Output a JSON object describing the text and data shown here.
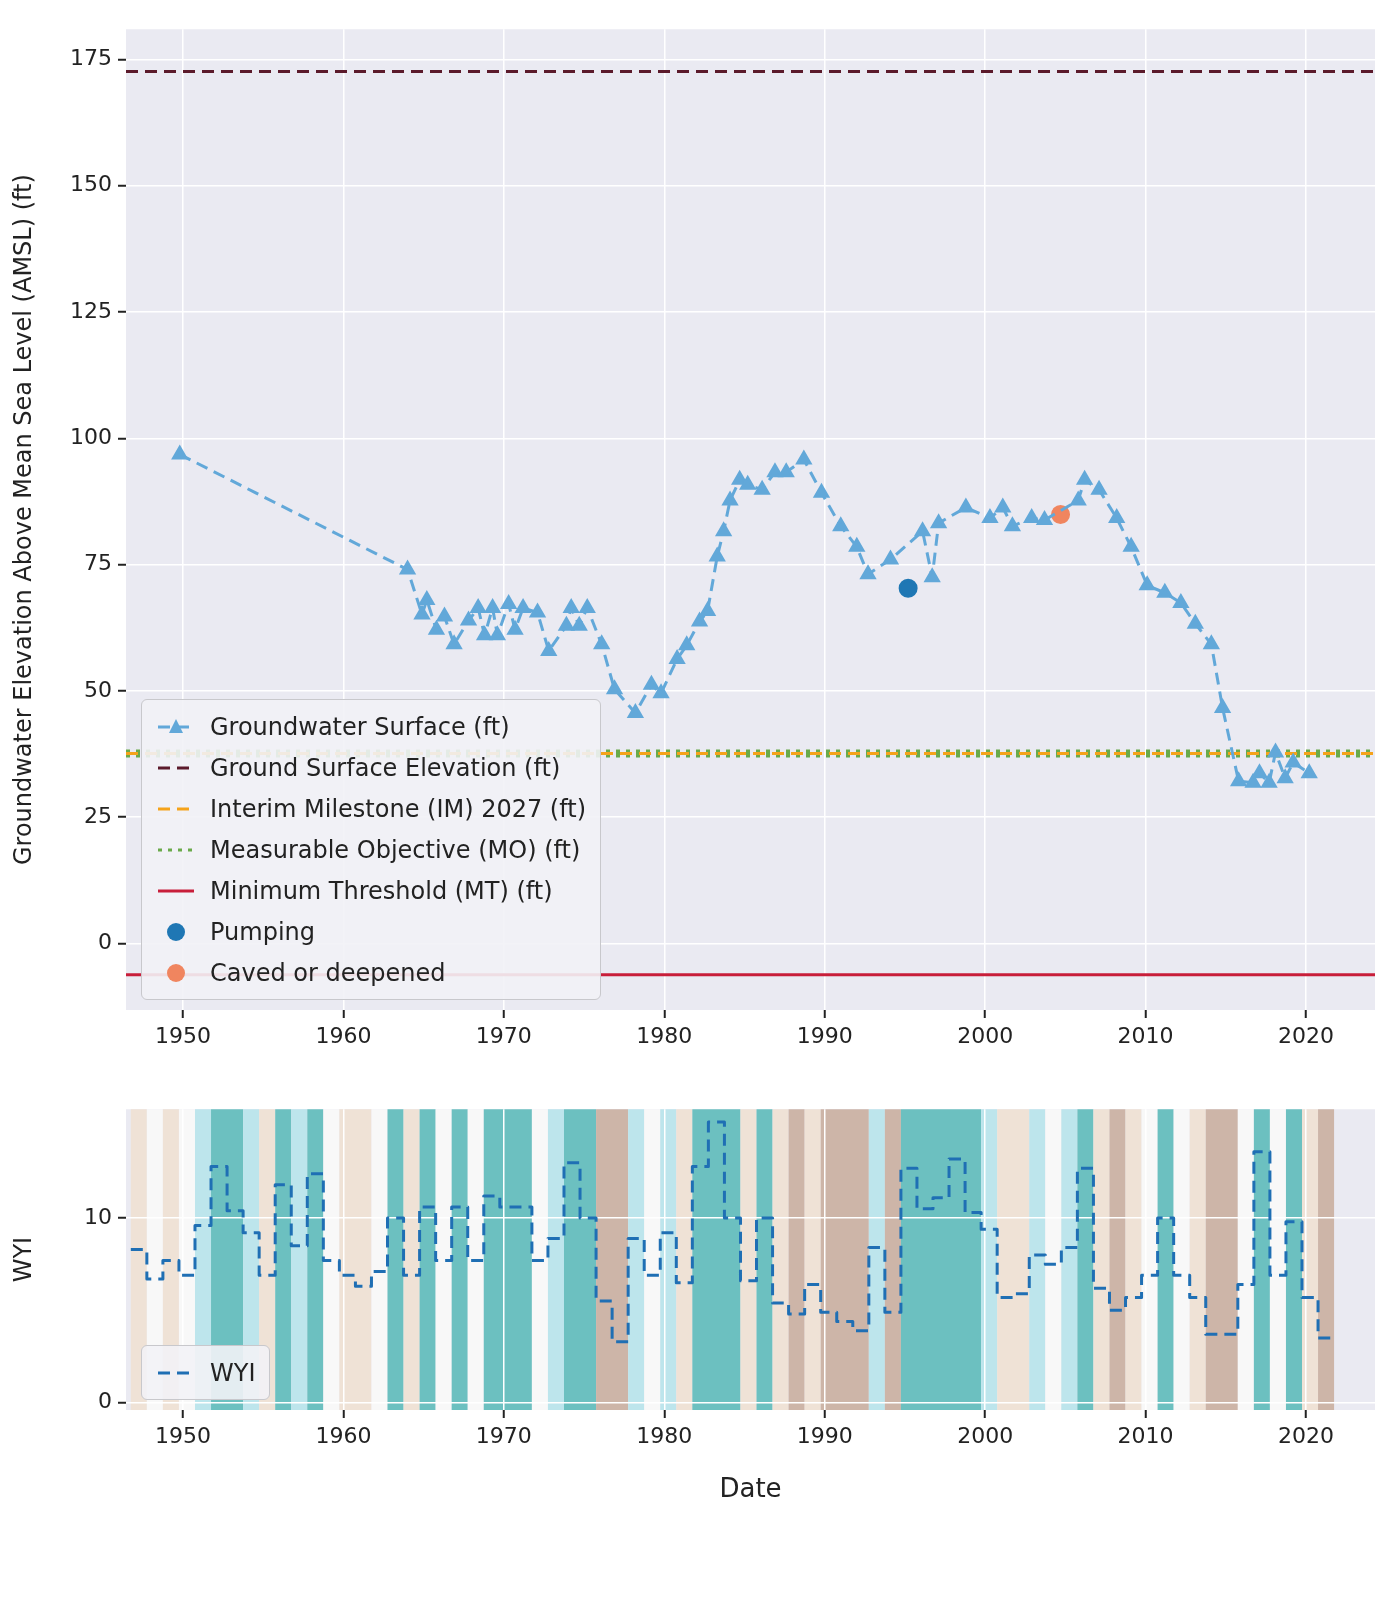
{
  "chart_data": [
    {
      "type": "line",
      "ylabel": "Groundwater Elevation Above Mean Sea Level (AMSL) (ft)",
      "xlim": [
        1946.45,
        2024.3
      ],
      "ylim": [
        -13.2,
        181
      ],
      "xticks": [
        1950,
        1960,
        1970,
        1980,
        1990,
        2000,
        2010,
        2020
      ],
      "yticks": [
        0,
        25,
        50,
        75,
        100,
        125,
        150,
        175
      ],
      "grid": true,
      "legend": "bottom left",
      "series": [
        {
          "name": "Groundwater Surface (ft)",
          "type": "line",
          "color": "#62a8d9",
          "marker": "triangle",
          "line_style": "dashed",
          "x": [
            1949.8,
            1964.0,
            1964.9,
            1965.2,
            1965.8,
            1966.3,
            1966.9,
            1967.8,
            1968.4,
            1968.8,
            1969.3,
            1969.6,
            1970.3,
            1970.7,
            1971.2,
            1972.1,
            1972.8,
            1973.9,
            1974.2,
            1974.7,
            1975.2,
            1976.1,
            1976.9,
            1978.2,
            1979.2,
            1979.8,
            1980.8,
            1981.4,
            1982.2,
            1982.7,
            1983.3,
            1983.7,
            1984.1,
            1984.7,
            1985.2,
            1986.1,
            1986.9,
            1987.6,
            1988.7,
            1989.8,
            1991.0,
            1992.0,
            1992.7,
            1994.1,
            1996.1,
            1996.7,
            1997.1,
            1998.8,
            2000.3,
            2001.1,
            2001.7,
            2002.9,
            2003.7,
            2005.8,
            2006.2,
            2007.1,
            2008.2,
            2009.1,
            2010.1,
            2011.2,
            2012.2,
            2013.1,
            2014.1,
            2014.8,
            2015.8,
            2016.7,
            2017.1,
            2017.7,
            2018.1,
            2018.7,
            2019.2,
            2020.2
          ],
          "values": [
            96.8,
            74.0,
            65.1,
            68.0,
            62.1,
            64.7,
            59.2,
            63.9,
            66.4,
            61.0,
            66.4,
            61.0,
            67.2,
            62.1,
            66.4,
            65.5,
            57.9,
            62.9,
            66.4,
            62.9,
            66.4,
            59.2,
            50.3,
            45.6,
            51.2,
            49.5,
            56.3,
            59.0,
            63.7,
            65.8,
            76.6,
            81.6,
            87.7,
            91.8,
            90.8,
            89.8,
            93.3,
            93.3,
            95.8,
            89.2,
            82.6,
            78.5,
            73.1,
            76.0,
            81.6,
            72.5,
            83.2,
            86.3,
            84.2,
            86.3,
            82.6,
            84.2,
            83.8,
            87.7,
            91.8,
            89.8,
            84.2,
            78.5,
            70.9,
            69.4,
            67.4,
            63.3,
            59.2,
            46.6,
            32.1,
            31.8,
            33.7,
            31.8,
            37.8,
            32.7,
            35.8,
            33.7
          ]
        },
        {
          "name": "Ground Surface Elevation (ft)",
          "type": "line",
          "color": "#5b1a2b",
          "line_style": "dashed",
          "x": [
            1946.45,
            2024.3
          ],
          "values": [
            172.6,
            172.6
          ]
        },
        {
          "name": "Interim Milestone (IM) 2027 (ft)",
          "type": "line",
          "color": "#f5a31a",
          "line_style": "dashed",
          "x": [
            1946.45,
            2024.3
          ],
          "values": [
            37.6,
            37.6
          ]
        },
        {
          "name": "Measurable Objective (MO) (ft)",
          "type": "line",
          "color": "#6aaa4a",
          "line_style": "dotted",
          "x": [
            1946.45,
            2024.3
          ],
          "values": [
            37.6,
            37.6
          ]
        },
        {
          "name": "Minimum Threshold (MT) (ft)",
          "type": "line",
          "color": "#c81e3a",
          "line_style": "solid",
          "x": [
            1946.45,
            2024.3
          ],
          "values": [
            -6.2,
            -6.2
          ]
        },
        {
          "name": "Pumping",
          "type": "scatter",
          "color": "#1f77b4",
          "marker": "circle",
          "x": [
            1995.2
          ],
          "values": [
            70.3
          ]
        },
        {
          "name": "Caved or deepened",
          "type": "scatter",
          "color": "#f0855f",
          "marker": "circle",
          "x": [
            2004.7
          ],
          "values": [
            84.9
          ]
        }
      ]
    },
    {
      "type": "step",
      "xlabel": "Date",
      "ylabel": "WYI",
      "xlim": [
        1946.45,
        2024.3
      ],
      "ylim": [
        -0.4,
        15.9
      ],
      "xticks": [
        1950,
        1960,
        1970,
        1980,
        1990,
        2000,
        2010,
        2020
      ],
      "yticks": [
        0,
        10
      ],
      "grid": true,
      "legend": "bottom left",
      "series": [
        {
          "name": "WYI",
          "color": "#1f6fb4",
          "line_style": "dashed",
          "x": [
            1946.75,
            1947.75,
            1948.75,
            1949.75,
            1950.75,
            1951.75,
            1952.75,
            1953.75,
            1954.75,
            1955.75,
            1956.75,
            1957.75,
            1958.75,
            1959.75,
            1960.75,
            1961.75,
            1962.75,
            1963.75,
            1964.75,
            1965.75,
            1966.75,
            1967.75,
            1968.75,
            1969.75,
            1970.75,
            1971.75,
            1972.75,
            1973.75,
            1974.75,
            1975.75,
            1976.75,
            1977.75,
            1978.75,
            1979.75,
            1980.75,
            1981.75,
            1982.75,
            1983.75,
            1984.75,
            1985.75,
            1986.75,
            1987.75,
            1988.75,
            1989.75,
            1990.75,
            1991.75,
            1992.75,
            1993.75,
            1994.75,
            1995.75,
            1996.75,
            1997.75,
            1998.75,
            1999.75,
            2000.75,
            2001.75,
            2002.75,
            2003.75,
            2004.75,
            2005.75,
            2006.75,
            2007.75,
            2008.75,
            2009.75,
            2010.75,
            2011.75,
            2012.75,
            2013.75,
            2014.75,
            2015.75,
            2016.75,
            2017.75,
            2018.75,
            2019.75,
            2020.75,
            2021.75
          ],
          "values": [
            8.3,
            6.7,
            7.7,
            6.9,
            9.6,
            12.8,
            10.4,
            9.2,
            6.9,
            11.8,
            8.5,
            12.4,
            7.7,
            6.9,
            6.3,
            7.1,
            10.0,
            6.9,
            10.6,
            7.7,
            10.6,
            7.7,
            11.2,
            10.6,
            10.6,
            7.7,
            8.9,
            13.0,
            10.0,
            5.5,
            3.3,
            8.9,
            6.9,
            9.2,
            6.5,
            12.8,
            15.2,
            10.0,
            6.6,
            10.0,
            5.4,
            4.8,
            6.4,
            4.9,
            4.4,
            3.9,
            8.4,
            4.9,
            12.7,
            10.5,
            11.1,
            13.2,
            10.3,
            9.4,
            5.7,
            5.9,
            8.0,
            7.5,
            8.4,
            12.7,
            6.2,
            5.0,
            5.7,
            6.9,
            10.0,
            6.9,
            5.7,
            3.7,
            3.7,
            6.4,
            13.6,
            6.9,
            9.8,
            5.7,
            3.5,
            3.5
          ]
        }
      ],
      "bands": [
        {
          "axis": "x",
          "from": 1946.75,
          "to": 1947.75,
          "color": "#efe2d6"
        },
        {
          "axis": "x",
          "from": 1947.75,
          "to": 1948.75,
          "color": "#f8f8f8"
        },
        {
          "axis": "x",
          "from": 1948.75,
          "to": 1949.75,
          "color": "#efe2d6"
        },
        {
          "axis": "x",
          "from": 1949.75,
          "to": 1950.75,
          "color": "#f8f8f8"
        },
        {
          "axis": "x",
          "from": 1950.75,
          "to": 1951.75,
          "color": "#bde5ec"
        },
        {
          "axis": "x",
          "from": 1951.75,
          "to": 1953.75,
          "color": "#6cc0c0"
        },
        {
          "axis": "x",
          "from": 1953.75,
          "to": 1954.75,
          "color": "#bde5ec"
        },
        {
          "axis": "x",
          "from": 1954.75,
          "to": 1955.75,
          "color": "#efe2d6"
        },
        {
          "axis": "x",
          "from": 1955.75,
          "to": 1956.75,
          "color": "#6cc0c0"
        },
        {
          "axis": "x",
          "from": 1956.75,
          "to": 1957.75,
          "color": "#bde5ec"
        },
        {
          "axis": "x",
          "from": 1957.75,
          "to": 1958.75,
          "color": "#6cc0c0"
        },
        {
          "axis": "x",
          "from": 1958.75,
          "to": 1959.75,
          "color": "#f8f8f8"
        },
        {
          "axis": "x",
          "from": 1959.75,
          "to": 1961.75,
          "color": "#efe2d6"
        },
        {
          "axis": "x",
          "from": 1961.75,
          "to": 1962.75,
          "color": "#f8f8f8"
        },
        {
          "axis": "x",
          "from": 1962.75,
          "to": 1963.75,
          "color": "#6cc0c0"
        },
        {
          "axis": "x",
          "from": 1963.75,
          "to": 1964.75,
          "color": "#efe2d6"
        },
        {
          "axis": "x",
          "from": 1964.75,
          "to": 1965.75,
          "color": "#6cc0c0"
        },
        {
          "axis": "x",
          "from": 1965.75,
          "to": 1966.75,
          "color": "#f8f8f8"
        },
        {
          "axis": "x",
          "from": 1966.75,
          "to": 1967.75,
          "color": "#6cc0c0"
        },
        {
          "axis": "x",
          "from": 1967.75,
          "to": 1968.75,
          "color": "#f8f8f8"
        },
        {
          "axis": "x",
          "from": 1968.75,
          "to": 1971.75,
          "color": "#6cc0c0"
        },
        {
          "axis": "x",
          "from": 1971.75,
          "to": 1972.75,
          "color": "#f8f8f8"
        },
        {
          "axis": "x",
          "from": 1972.75,
          "to": 1973.75,
          "color": "#bde5ec"
        },
        {
          "axis": "x",
          "from": 1973.75,
          "to": 1975.75,
          "color": "#6cc0c0"
        },
        {
          "axis": "x",
          "from": 1975.75,
          "to": 1977.75,
          "color": "#cdb5a8"
        },
        {
          "axis": "x",
          "from": 1977.75,
          "to": 1978.75,
          "color": "#bde5ec"
        },
        {
          "axis": "x",
          "from": 1978.75,
          "to": 1979.75,
          "color": "#f8f8f8"
        },
        {
          "axis": "x",
          "from": 1979.75,
          "to": 1980.75,
          "color": "#bde5ec"
        },
        {
          "axis": "x",
          "from": 1980.75,
          "to": 1981.75,
          "color": "#efe2d6"
        },
        {
          "axis": "x",
          "from": 1981.75,
          "to": 1984.75,
          "color": "#6cc0c0"
        },
        {
          "axis": "x",
          "from": 1984.75,
          "to": 1985.75,
          "color": "#efe2d6"
        },
        {
          "axis": "x",
          "from": 1985.75,
          "to": 1986.75,
          "color": "#6cc0c0"
        },
        {
          "axis": "x",
          "from": 1986.75,
          "to": 1987.75,
          "color": "#efe2d6"
        },
        {
          "axis": "x",
          "from": 1987.75,
          "to": 1988.75,
          "color": "#cdb5a8"
        },
        {
          "axis": "x",
          "from": 1988.75,
          "to": 1989.75,
          "color": "#efe2d6"
        },
        {
          "axis": "x",
          "from": 1989.75,
          "to": 1992.75,
          "color": "#cdb5a8"
        },
        {
          "axis": "x",
          "from": 1992.75,
          "to": 1993.75,
          "color": "#bde5ec"
        },
        {
          "axis": "x",
          "from": 1993.75,
          "to": 1994.75,
          "color": "#cdb5a8"
        },
        {
          "axis": "x",
          "from": 1994.75,
          "to": 1999.75,
          "color": "#6cc0c0"
        },
        {
          "axis": "x",
          "from": 1999.75,
          "to": 2000.75,
          "color": "#bde5ec"
        },
        {
          "axis": "x",
          "from": 2000.75,
          "to": 2002.75,
          "color": "#efe2d6"
        },
        {
          "axis": "x",
          "from": 2002.75,
          "to": 2003.75,
          "color": "#bde5ec"
        },
        {
          "axis": "x",
          "from": 2003.75,
          "to": 2004.75,
          "color": "#f8f8f8"
        },
        {
          "axis": "x",
          "from": 2004.75,
          "to": 2005.75,
          "color": "#bde5ec"
        },
        {
          "axis": "x",
          "from": 2005.75,
          "to": 2006.75,
          "color": "#6cc0c0"
        },
        {
          "axis": "x",
          "from": 2006.75,
          "to": 2007.75,
          "color": "#efe2d6"
        },
        {
          "axis": "x",
          "from": 2007.75,
          "to": 2008.75,
          "color": "#cdb5a8"
        },
        {
          "axis": "x",
          "from": 2008.75,
          "to": 2009.75,
          "color": "#efe2d6"
        },
        {
          "axis": "x",
          "from": 2009.75,
          "to": 2010.75,
          "color": "#f8f8f8"
        },
        {
          "axis": "x",
          "from": 2010.75,
          "to": 2011.75,
          "color": "#6cc0c0"
        },
        {
          "axis": "x",
          "from": 2011.75,
          "to": 2012.75,
          "color": "#f8f8f8"
        },
        {
          "axis": "x",
          "from": 2012.75,
          "to": 2013.75,
          "color": "#efe2d6"
        },
        {
          "axis": "x",
          "from": 2013.75,
          "to": 2015.75,
          "color": "#cdb5a8"
        },
        {
          "axis": "x",
          "from": 2015.75,
          "to": 2016.75,
          "color": "#f8f8f8"
        },
        {
          "axis": "x",
          "from": 2016.75,
          "to": 2017.75,
          "color": "#6cc0c0"
        },
        {
          "axis": "x",
          "from": 2017.75,
          "to": 2018.75,
          "color": "#f8f8f8"
        },
        {
          "axis": "x",
          "from": 2018.75,
          "to": 2019.75,
          "color": "#6cc0c0"
        },
        {
          "axis": "x",
          "from": 2019.75,
          "to": 2020.75,
          "color": "#efe2d6"
        },
        {
          "axis": "x",
          "from": 2020.75,
          "to": 2021.75,
          "color": "#cdb5a8"
        }
      ]
    }
  ]
}
